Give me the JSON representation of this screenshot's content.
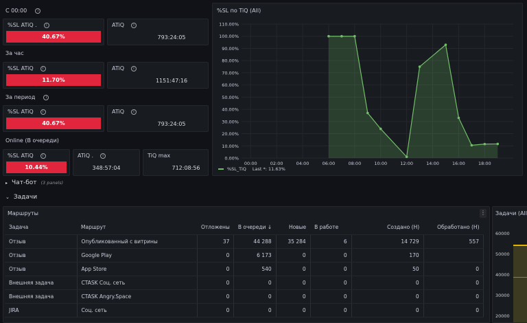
{
  "stats": {
    "since_midnight": "С 00:00",
    "hour": "За час",
    "period": "За период",
    "online": "Online (В очереди)",
    "sl_label": "%SL ATiQ .",
    "sl_label2": "%SL ATiQ",
    "atiq_label": "ATiQ",
    "atiq_label_dot": "ATiQ .",
    "tiq_max_label": "TiQ max",
    "row1_sl": "40.67%",
    "row1_atiq": "793:24:05",
    "row2_sl": "11.70%",
    "row2_atiq": "1151:47:16",
    "row3_sl": "40.67%",
    "row3_atiq": "793:24:05",
    "row4_sl": "10.44%",
    "row4_atiq": "348:57:04",
    "row4_tiqmax": "712:08:56"
  },
  "chart_data": {
    "type": "area",
    "title": "%SL по TiQ (All)",
    "x": [
      "06:00",
      "07:00",
      "08:00",
      "09:00",
      "10:00",
      "12:00",
      "13:00",
      "15:00",
      "16:00",
      "17:00",
      "18:00",
      "19:00"
    ],
    "values": [
      100,
      100,
      100,
      37,
      24,
      1,
      75,
      93,
      33,
      10.5,
      11.5,
      11.6
    ],
    "x_positions_hours": [
      6,
      7,
      8,
      9,
      10,
      12,
      13,
      15,
      16,
      17,
      18,
      19
    ],
    "x_ticks": [
      "00:00",
      "02:00",
      "04:00",
      "06:00",
      "08:00",
      "10:00",
      "12:00",
      "14:00",
      "16:00",
      "18:00"
    ],
    "y_ticks": [
      "0.00%",
      "10.00%",
      "20.00%",
      "30.00%",
      "40.00%",
      "50.00%",
      "60.00%",
      "70.00%",
      "80.00%",
      "90.00%",
      "100.00%",
      "110.00%"
    ],
    "ylim": [
      0,
      110
    ],
    "xlim_hours": [
      -0.7,
      20.2
    ],
    "legend": "%SL_TiQ",
    "legend_last": "Last *: 11.63%",
    "color": "#73bf69"
  },
  "rows": {
    "chatbot": "Чат-бот",
    "chatbot_panels": "(3 panels)",
    "tasks": "Задачи"
  },
  "routes": {
    "title": "Маршруты",
    "headers": [
      "Задача",
      "Маршрут",
      "Отложены",
      "В очереди ↓",
      "Новые",
      "В работе",
      "Создано (Н)",
      "Обработано (Н)"
    ],
    "rows": [
      [
        "Отзыв",
        "Опубликованный с витрины",
        "37",
        "44 288",
        "35 284",
        "6",
        "14 729",
        "557"
      ],
      [
        "Отзыв",
        "Google Play",
        "0",
        "6 173",
        "0",
        "0",
        "170",
        ""
      ],
      [
        "Отзыв",
        "App Store",
        "0",
        "540",
        "0",
        "0",
        "50",
        "0"
      ],
      [
        "Внешняя задача",
        "CTASK Соц. сеть",
        "0",
        "0",
        "0",
        "0",
        "0",
        "0"
      ],
      [
        "Внешняя задача",
        "CTASK Angry.Space",
        "0",
        "0",
        "0",
        "0",
        "0",
        "0"
      ],
      [
        "JIRA",
        "Соц. сеть",
        "0",
        "0",
        "0",
        "0",
        "0",
        "0"
      ]
    ]
  },
  "tasks_all": {
    "title": "Задачи (All)",
    "y_ticks": [
      "60000",
      "50000",
      "40000",
      "30000",
      "20000"
    ]
  }
}
